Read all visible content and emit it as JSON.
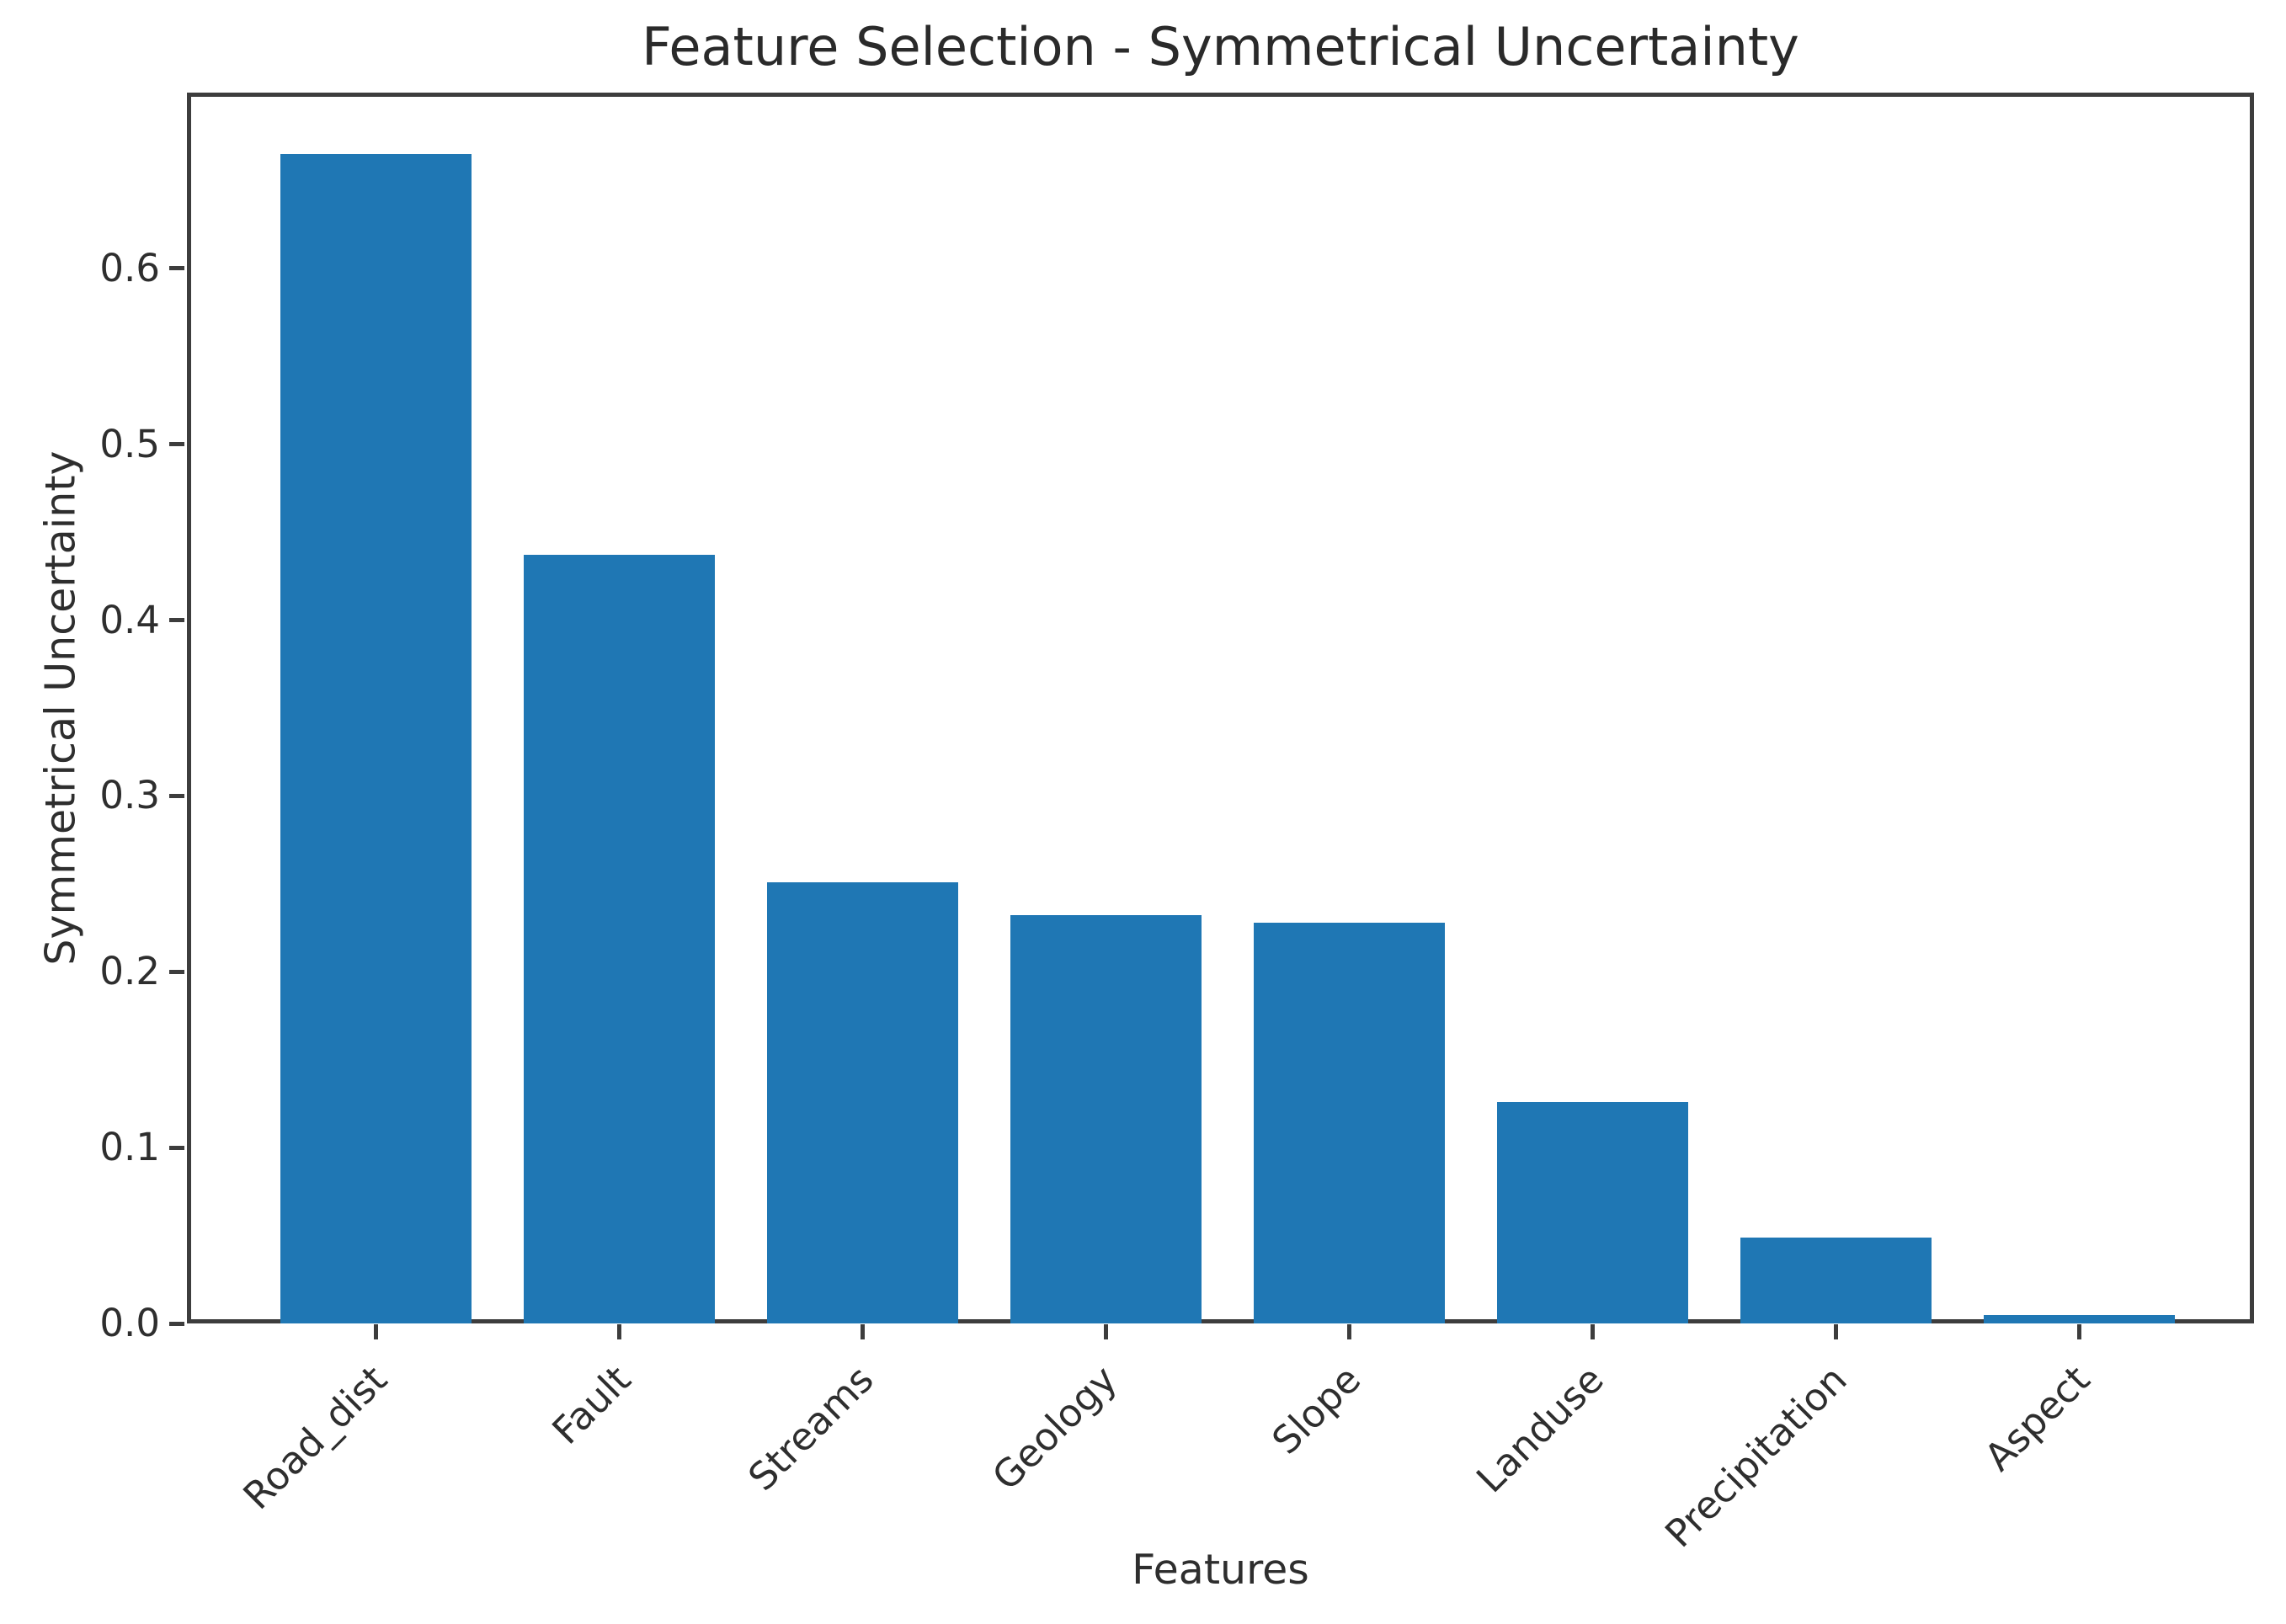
{
  "figure": {
    "background_color": "#ffffff"
  },
  "chart_data": {
    "type": "bar",
    "title": "Feature Selection - Symmetrical Uncertainty",
    "xlabel": "Features",
    "ylabel": "Symmetrical Uncertainty",
    "categories": [
      "Road_dist",
      "Fault",
      "Streams",
      "Geology",
      "Slope",
      "Landuse",
      "Precipitation",
      "Aspect"
    ],
    "values": [
      0.665,
      0.437,
      0.251,
      0.232,
      0.228,
      0.126,
      0.049,
      0.005
    ],
    "ylim": [
      0,
      0.7
    ],
    "yticks": [
      0.0,
      0.1,
      0.2,
      0.3,
      0.4,
      0.5,
      0.6
    ],
    "ytick_labels": [
      "0.0",
      "0.1",
      "0.2",
      "0.3",
      "0.4",
      "0.5",
      "0.6"
    ],
    "x_tick_rotation_deg": 45,
    "grid": false,
    "legend": "none",
    "bar_color": "#1f77b4",
    "axis_color": "#3d3d3d",
    "text_color": "#2e2e2e"
  }
}
